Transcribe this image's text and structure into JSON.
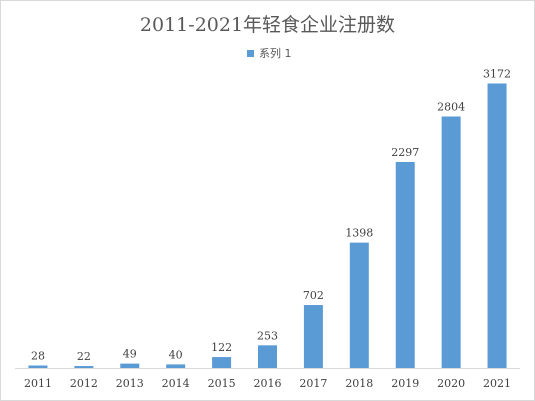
{
  "chart_data": {
    "type": "bar",
    "title": "2011-2021年轻食企业注册数",
    "xlabel": "",
    "ylabel": "",
    "categories": [
      "2011",
      "2012",
      "2013",
      "2014",
      "2015",
      "2016",
      "2017",
      "2018",
      "2019",
      "2020",
      "2021"
    ],
    "series": [
      {
        "name": "系列 1",
        "values": [
          28,
          22,
          49,
          40,
          122,
          253,
          702,
          1398,
          2297,
          2804,
          3172
        ],
        "color": "#5b9bd5"
      }
    ],
    "ylim": [
      0,
      3300
    ],
    "grid": false,
    "data_labels": true,
    "legend_position": "top-center"
  }
}
